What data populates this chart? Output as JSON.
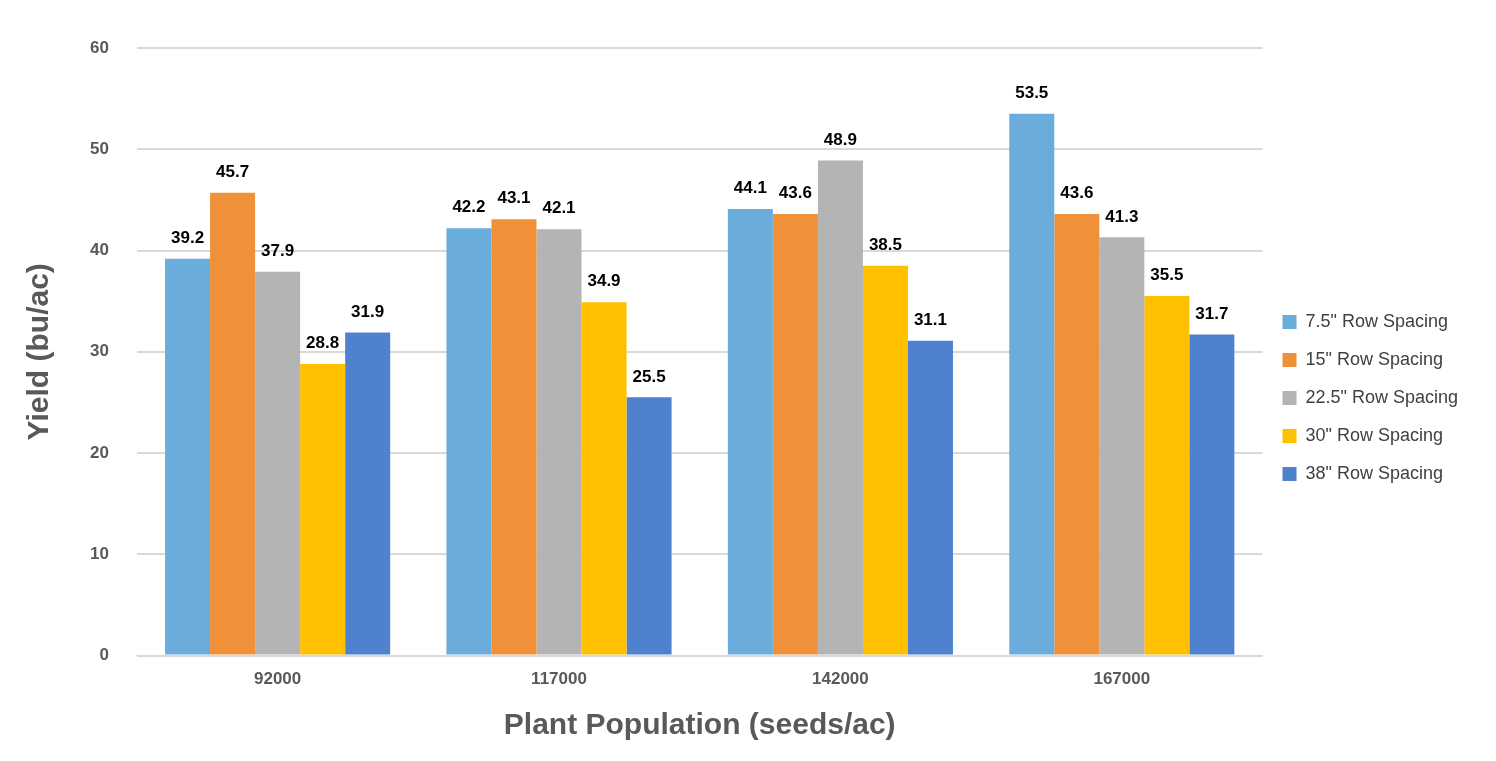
{
  "chart_data": {
    "type": "bar",
    "xlabel": "Plant Population (seeds/ac)",
    "ylabel": "Yield (bu/ac)",
    "categories": [
      "92000",
      "117000",
      "142000",
      "167000"
    ],
    "series": [
      {
        "name": "7.5\" Row Spacing",
        "color": "#6aacdc",
        "values": [
          39.2,
          42.2,
          44.1,
          53.5
        ]
      },
      {
        "name": "15\" Row Spacing",
        "color": "#f0913a",
        "values": [
          45.7,
          43.1,
          43.6,
          43.6
        ]
      },
      {
        "name": "22.5\" Row Spacing",
        "color": "#b4b4b4",
        "values": [
          37.9,
          42.1,
          48.9,
          41.3
        ]
      },
      {
        "name": "30\" Row Spacing",
        "color": "#ffc000",
        "values": [
          28.8,
          34.9,
          38.5,
          35.5
        ]
      },
      {
        "name": "38\" Row Spacing",
        "color": "#4f81cf",
        "values": [
          31.9,
          25.5,
          31.1,
          31.7
        ]
      }
    ],
    "ylim": [
      0,
      60
    ],
    "yticks": [
      0,
      10,
      20,
      30,
      40,
      50,
      60
    ],
    "grid": "y",
    "legend": "right",
    "data_labels": true
  }
}
